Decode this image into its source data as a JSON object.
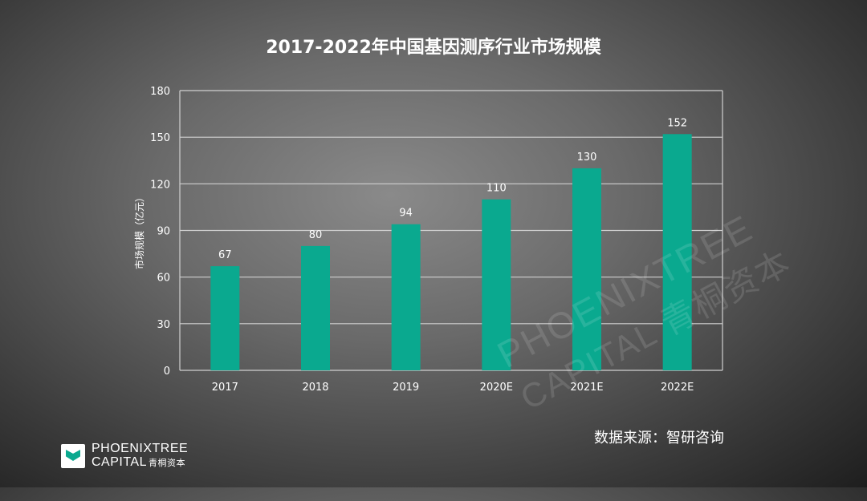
{
  "chart_data": {
    "type": "bar",
    "title": "2017-2022年中国基因测序行业市场规模",
    "ylabel": "市场规模（亿元）",
    "xlabel": "",
    "categories": [
      "2017",
      "2018",
      "2019",
      "2020E",
      "2021E",
      "2022E"
    ],
    "values": [
      67,
      80,
      94,
      110,
      130,
      152
    ],
    "ylim": [
      0,
      180
    ],
    "yticks": [
      0,
      30,
      60,
      90,
      120,
      150,
      180
    ],
    "grid": true,
    "data_labels": true,
    "bar_color": "#0aa98f",
    "grid_color": "#d0d0d0"
  },
  "source": "数据来源：智研咨询",
  "brand": {
    "line1": "PHOENIXTREE",
    "line2": "CAPITAL",
    "line2_cn": "青桐资本"
  },
  "watermark": {
    "line1": "PHOENIXTREE",
    "line2": "CAPITAL 青桐资本"
  }
}
